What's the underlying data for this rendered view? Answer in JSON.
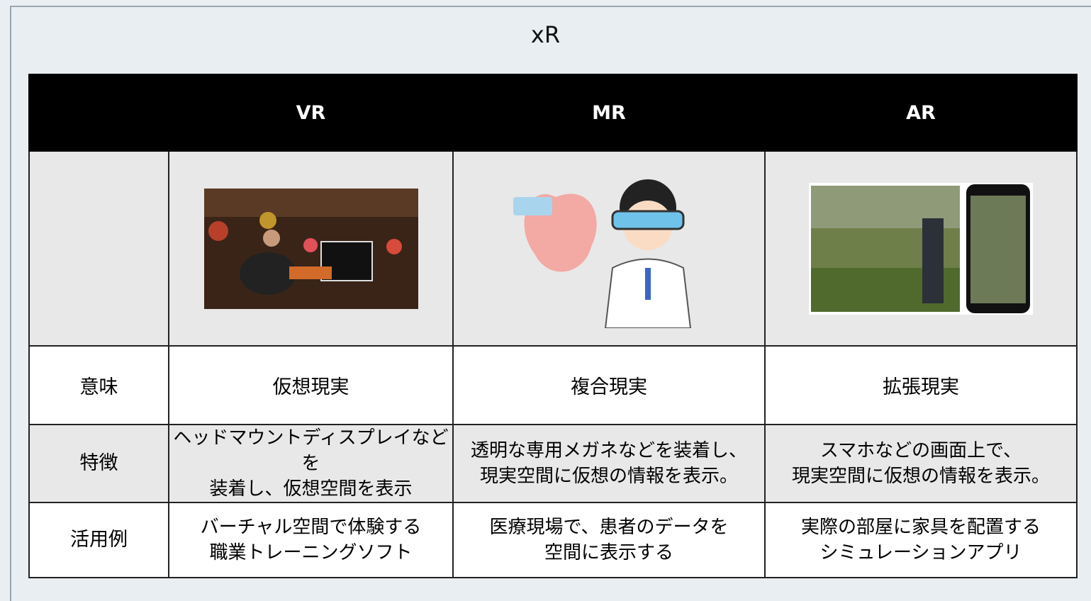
{
  "title": "xR",
  "table": {
    "header": [
      "VR",
      "MR",
      "AR"
    ],
    "rows": [
      {
        "label": "意味",
        "cells": [
          [
            "仮想現実"
          ],
          [
            "複合現実"
          ],
          [
            "拡張現実"
          ]
        ]
      },
      {
        "label": "特徴",
        "cells": [
          [
            "ヘッドマウントディスプレイなどを",
            "装着し、仮想空間を表示"
          ],
          [
            "透明な専用メガネなどを装着し、",
            "現実空間に仮想の情報を表示。"
          ],
          [
            "スマホなどの画面上で、",
            "現実空間に仮想の情報を表示。"
          ]
        ]
      },
      {
        "label": "活用例",
        "cells": [
          [
            "バーチャル空間で体験する",
            "職業トレーニングソフト"
          ],
          [
            "医療現場で、患者のデータを",
            "空間に表示する"
          ],
          [
            "実際の部屋に家具を配置する",
            "シミュレーションアプリ"
          ]
        ]
      }
    ]
  }
}
